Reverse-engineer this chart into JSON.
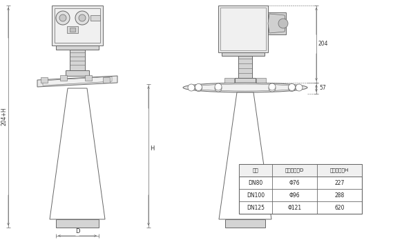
{
  "bg_color": "#ffffff",
  "line_color": "#666666",
  "fill_light": "#e8e8e8",
  "fill_mid": "#d4d4d4",
  "fill_dark": "#c0c0c0",
  "table_headers": [
    "法蘭",
    "喇叭口直徑D",
    "喇叭口高度H"
  ],
  "table_rows": [
    [
      "DN80",
      "Φ76",
      "227"
    ],
    [
      "DN100",
      "Φ96",
      "288"
    ],
    [
      "DN125",
      "Φ121",
      "620"
    ]
  ],
  "dim_204": "204",
  "dim_57": "57",
  "dim_H": "H",
  "dim_204H": "204+H",
  "dim_D": "D"
}
